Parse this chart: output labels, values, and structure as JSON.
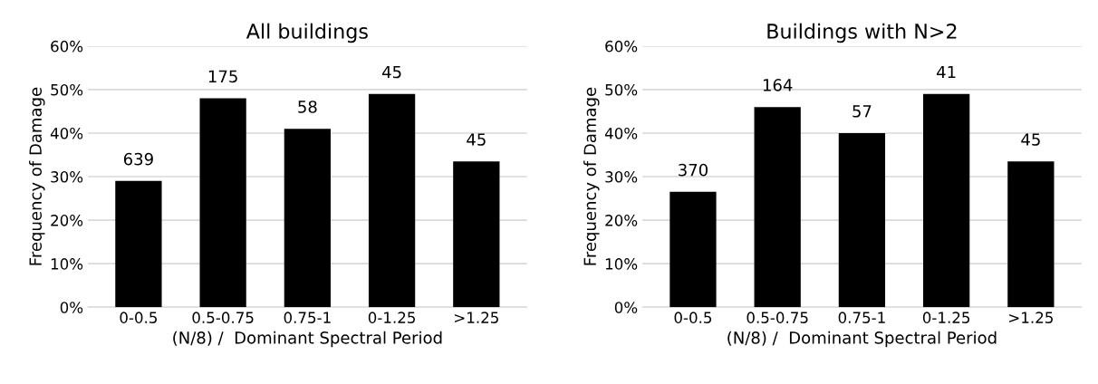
{
  "chart_data": [
    {
      "type": "bar",
      "title": "All buildings",
      "xlabel": "(N/8) /  Dominant Spectral Period",
      "ylabel": "Frequency of Damage",
      "categories": [
        "0-0.5",
        "0.5-0.75",
        "0.75-1",
        "0-1.25",
        ">1.25"
      ],
      "values": [
        29,
        48,
        41,
        49,
        33.5
      ],
      "color": "#000000",
      "annotations": [
        {
          "text": "639",
          "x": "0-0.5",
          "y": 29
        },
        {
          "text": "175",
          "x": "0.5-0.75",
          "y": 48
        },
        {
          "text": "58",
          "x": "0.75-1",
          "y": 41
        },
        {
          "text": "45",
          "x": "0-1.25",
          "y": 49
        },
        {
          "text": "45",
          "x": ">1.25",
          "y": 33.5
        }
      ],
      "ylim": [
        0,
        60
      ],
      "yticks": [
        {
          "value": 0,
          "label": "0%"
        },
        {
          "value": 10,
          "label": "10%"
        },
        {
          "value": 20,
          "label": "20%"
        },
        {
          "value": 30,
          "label": "30%"
        },
        {
          "value": 40,
          "label": "40%"
        },
        {
          "value": 50,
          "label": "50%"
        },
        {
          "value": 60,
          "label": "60%"
        }
      ],
      "grid": "y",
      "legend": false
    },
    {
      "type": "bar",
      "title": "Buildings with N>2",
      "xlabel": "(N/8) /  Dominant Spectral Period",
      "ylabel": "Frequency of Damage",
      "categories": [
        "0-0.5",
        "0.5-0.75",
        "0.75-1",
        "0-1.25",
        ">1.25"
      ],
      "values": [
        26.5,
        46,
        40,
        49,
        33.5
      ],
      "color": "#000000",
      "annotations": [
        {
          "text": "370",
          "x": "0-0.5",
          "y": 26.5
        },
        {
          "text": "164",
          "x": "0.5-0.75",
          "y": 46
        },
        {
          "text": "57",
          "x": "0.75-1",
          "y": 40
        },
        {
          "text": "41",
          "x": "0-1.25",
          "y": 49
        },
        {
          "text": "45",
          "x": ">1.25",
          "y": 33.5
        }
      ],
      "ylim": [
        0,
        60
      ],
      "yticks": [
        {
          "value": 0,
          "label": "0%"
        },
        {
          "value": 10,
          "label": "10%"
        },
        {
          "value": 20,
          "label": "20%"
        },
        {
          "value": 30,
          "label": "30%"
        },
        {
          "value": 40,
          "label": "40%"
        },
        {
          "value": 50,
          "label": "50%"
        },
        {
          "value": 60,
          "label": "60%"
        }
      ],
      "grid": "y",
      "legend": false
    }
  ]
}
